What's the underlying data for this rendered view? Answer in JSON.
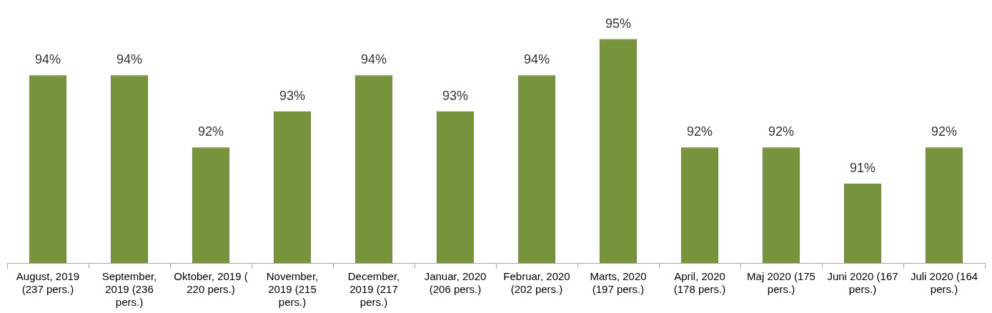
{
  "chart_data": {
    "type": "bar",
    "categories": [
      "August, 2019 (237 pers.)",
      "September, 2019 (236 pers.)",
      "Oktober, 2019 ( 220 pers.)",
      "November, 2019 (215 pers.)",
      "December, 2019 (217 pers.)",
      "Januar, 2020 (206 pers.)",
      "Februar, 2020 (202 pers.)",
      "Marts, 2020 (197 pers.)",
      "April, 2020 (178 pers.)",
      "Maj 2020 (175 pers.)",
      "Juni 2020 (167 pers.)",
      "Juli 2020 (164 pers.)"
    ],
    "values": [
      94,
      94,
      92,
      93,
      94,
      93,
      94,
      95,
      92,
      92,
      91,
      92
    ],
    "color": "#77933c",
    "value_labels": [
      "94%",
      "94%",
      "92%",
      "93%",
      "94%",
      "93%",
      "94%",
      "95%",
      "92%",
      "92%",
      "91%",
      "92%"
    ],
    "tick_labels": "x",
    "grid": false,
    "legend": false
  }
}
